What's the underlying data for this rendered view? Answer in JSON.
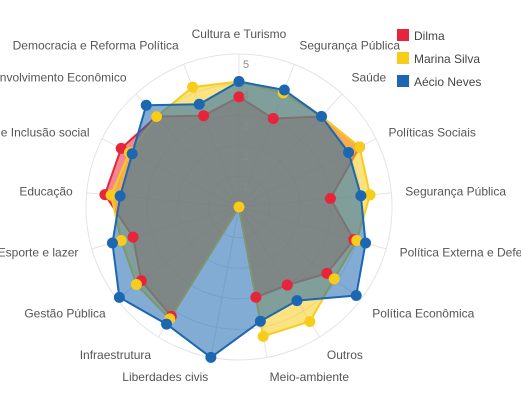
{
  "chart_data": {
    "type": "radar",
    "categories": [
      "Cultura e Turismo",
      "Segurança Pública",
      "Saúde",
      "Políticas Sociais",
      "Segurança Pública",
      "Política Externa e Defesa Nacional",
      "Política Econômica",
      "Outros",
      "Meio-ambiente",
      "Liberdades civis",
      "Infraestrutura",
      "Gestão Pública",
      "Esporte e lazer",
      "Educação",
      "Direitos Humanos e Inclusão social",
      "Desenvolvimento Econômico",
      "Democracia e Reforma Política"
    ],
    "rlim": [
      0,
      5
    ],
    "ticks": [
      "1",
      "2",
      "3",
      "4",
      "5"
    ],
    "grid": true,
    "legend_position": "top-right",
    "series": [
      {
        "name": "Dilma",
        "color": "#e8243a",
        "values": [
          3.6,
          3.1,
          4.0,
          4.4,
          3.0,
          3.9,
          3.6,
          3.0,
          3.0,
          0,
          4.2,
          4.0,
          3.6,
          4.4,
          4.3,
          4.0,
          3.2
        ]
      },
      {
        "name": "Marina Silva",
        "color": "#f8cc1b",
        "values": [
          4.1,
          4.0,
          4.0,
          4.4,
          4.3,
          4.0,
          3.9,
          4.4,
          4.3,
          0,
          4.3,
          4.2,
          4.0,
          4.2,
          4.0,
          4.0,
          4.2
        ]
      },
      {
        "name": "Aécio Neves",
        "color": "#1b67b1",
        "values": [
          4.1,
          4.1,
          4.0,
          4.0,
          4.0,
          4.3,
          4.8,
          3.6,
          3.8,
          5.0,
          4.5,
          4.9,
          4.3,
          3.9,
          3.9,
          4.5,
          3.6
        ]
      }
    ]
  }
}
